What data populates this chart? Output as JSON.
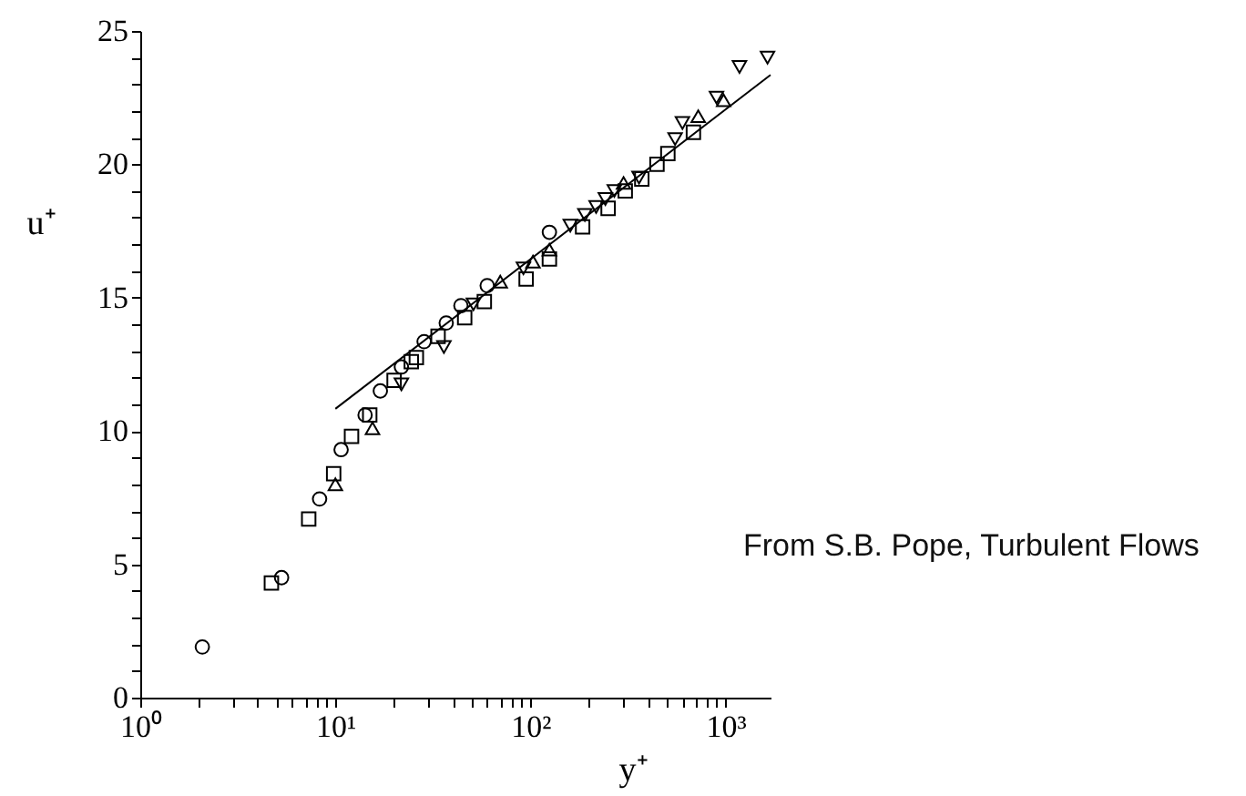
{
  "chart_data": {
    "type": "scatter",
    "xlabel": "y⁺",
    "ylabel": "u⁺",
    "log": "x",
    "annotations": [
      "From S.B. Pope, Turbulent Flows"
    ],
    "xlim": [
      1,
      1700
    ],
    "ylim": [
      0,
      25
    ],
    "xticks": [
      {
        "value": 1,
        "label": "10⁰"
      },
      {
        "value": 2,
        "label": null
      },
      {
        "value": 3,
        "label": null
      },
      {
        "value": 4,
        "label": null
      },
      {
        "value": 5,
        "label": null
      },
      {
        "value": 6,
        "label": null
      },
      {
        "value": 7,
        "label": null
      },
      {
        "value": 8,
        "label": null
      },
      {
        "value": 9,
        "label": null
      },
      {
        "value": 10,
        "label": "10¹"
      },
      {
        "value": 20,
        "label": null
      },
      {
        "value": 30,
        "label": null
      },
      {
        "value": 40,
        "label": null
      },
      {
        "value": 50,
        "label": null
      },
      {
        "value": 60,
        "label": null
      },
      {
        "value": 70,
        "label": null
      },
      {
        "value": 80,
        "label": null
      },
      {
        "value": 90,
        "label": null
      },
      {
        "value": 100,
        "label": "10²"
      },
      {
        "value": 200,
        "label": null
      },
      {
        "value": 300,
        "label": null
      },
      {
        "value": 400,
        "label": null
      },
      {
        "value": 500,
        "label": null
      },
      {
        "value": 600,
        "label": null
      },
      {
        "value": 700,
        "label": null
      },
      {
        "value": 800,
        "label": null
      },
      {
        "value": 900,
        "label": null
      },
      {
        "value": 1000,
        "label": "10³"
      }
    ],
    "yticks": [
      0,
      {
        "value": 1,
        "label": null
      },
      {
        "value": 2,
        "label": null
      },
      {
        "value": 3,
        "label": null
      },
      {
        "value": 4,
        "label": null
      },
      5,
      {
        "value": 6,
        "label": null
      },
      {
        "value": 7,
        "label": null
      },
      {
        "value": 8,
        "label": null
      },
      {
        "value": 9,
        "label": null
      },
      10,
      {
        "value": 11,
        "label": null
      },
      {
        "value": 12,
        "label": null
      },
      {
        "value": 13,
        "label": null
      },
      {
        "value": 14,
        "label": null
      },
      15,
      {
        "value": 16,
        "label": null
      },
      {
        "value": 17,
        "label": null
      },
      {
        "value": 18,
        "label": null
      },
      {
        "value": 19,
        "label": null
      },
      20,
      {
        "value": 21,
        "label": null
      },
      {
        "value": 22,
        "label": null
      },
      {
        "value": 23,
        "label": null
      },
      {
        "value": 24,
        "label": null
      },
      25
    ],
    "series": [
      {
        "color": "#000000",
        "marker": "circle",
        "x": [
          2.08,
          5.3,
          8.3,
          10.7,
          14.2,
          17,
          21.8,
          28.5,
          37,
          44,
          60,
          125
        ],
        "values": [
          1.9,
          4.5,
          7.45,
          9.3,
          10.6,
          11.5,
          12.4,
          13.35,
          14.05,
          14.7,
          15.45,
          17.45
        ]
      },
      {
        "color": "#000000",
        "marker": "square",
        "x": [
          4.7,
          7.3,
          9.8,
          12.1,
          15,
          20,
          24.5,
          26,
          33.6,
          46,
          58,
          95,
          125,
          185,
          250,
          306,
          372,
          445,
          506,
          684
        ],
        "values": [
          4.3,
          6.7,
          8.4,
          9.8,
          10.6,
          11.9,
          12.6,
          12.75,
          13.55,
          14.25,
          14.85,
          15.7,
          16.45,
          17.65,
          18.35,
          19.0,
          19.45,
          20.0,
          20.4,
          21.2
        ]
      },
      {
        "color": "#000000",
        "marker": "triangle",
        "x": [
          10,
          15.5,
          70,
          103,
          125,
          300,
          724,
          977
        ],
        "values": [
          8.0,
          10.1,
          15.6,
          16.35,
          16.8,
          19.3,
          21.8,
          22.4
        ]
      },
      {
        "color": "#000000",
        "marker": "triangle-down",
        "x": [
          21.8,
          36,
          51,
          92,
          160,
          190,
          217,
          242,
          269,
          360,
          551,
          601,
          898,
          1178,
          1640
        ],
        "values": [
          11.75,
          13.15,
          14.75,
          16.1,
          17.7,
          18.1,
          18.4,
          18.7,
          19.0,
          19.5,
          20.95,
          21.55,
          22.5,
          23.65,
          24.0
        ]
      },
      {
        "type": "line",
        "color": "#000000",
        "marker": "none",
        "line_style": "solid",
        "x": [
          10,
          1700
        ],
        "values": [
          10.83,
          23.35
        ]
      }
    ]
  }
}
